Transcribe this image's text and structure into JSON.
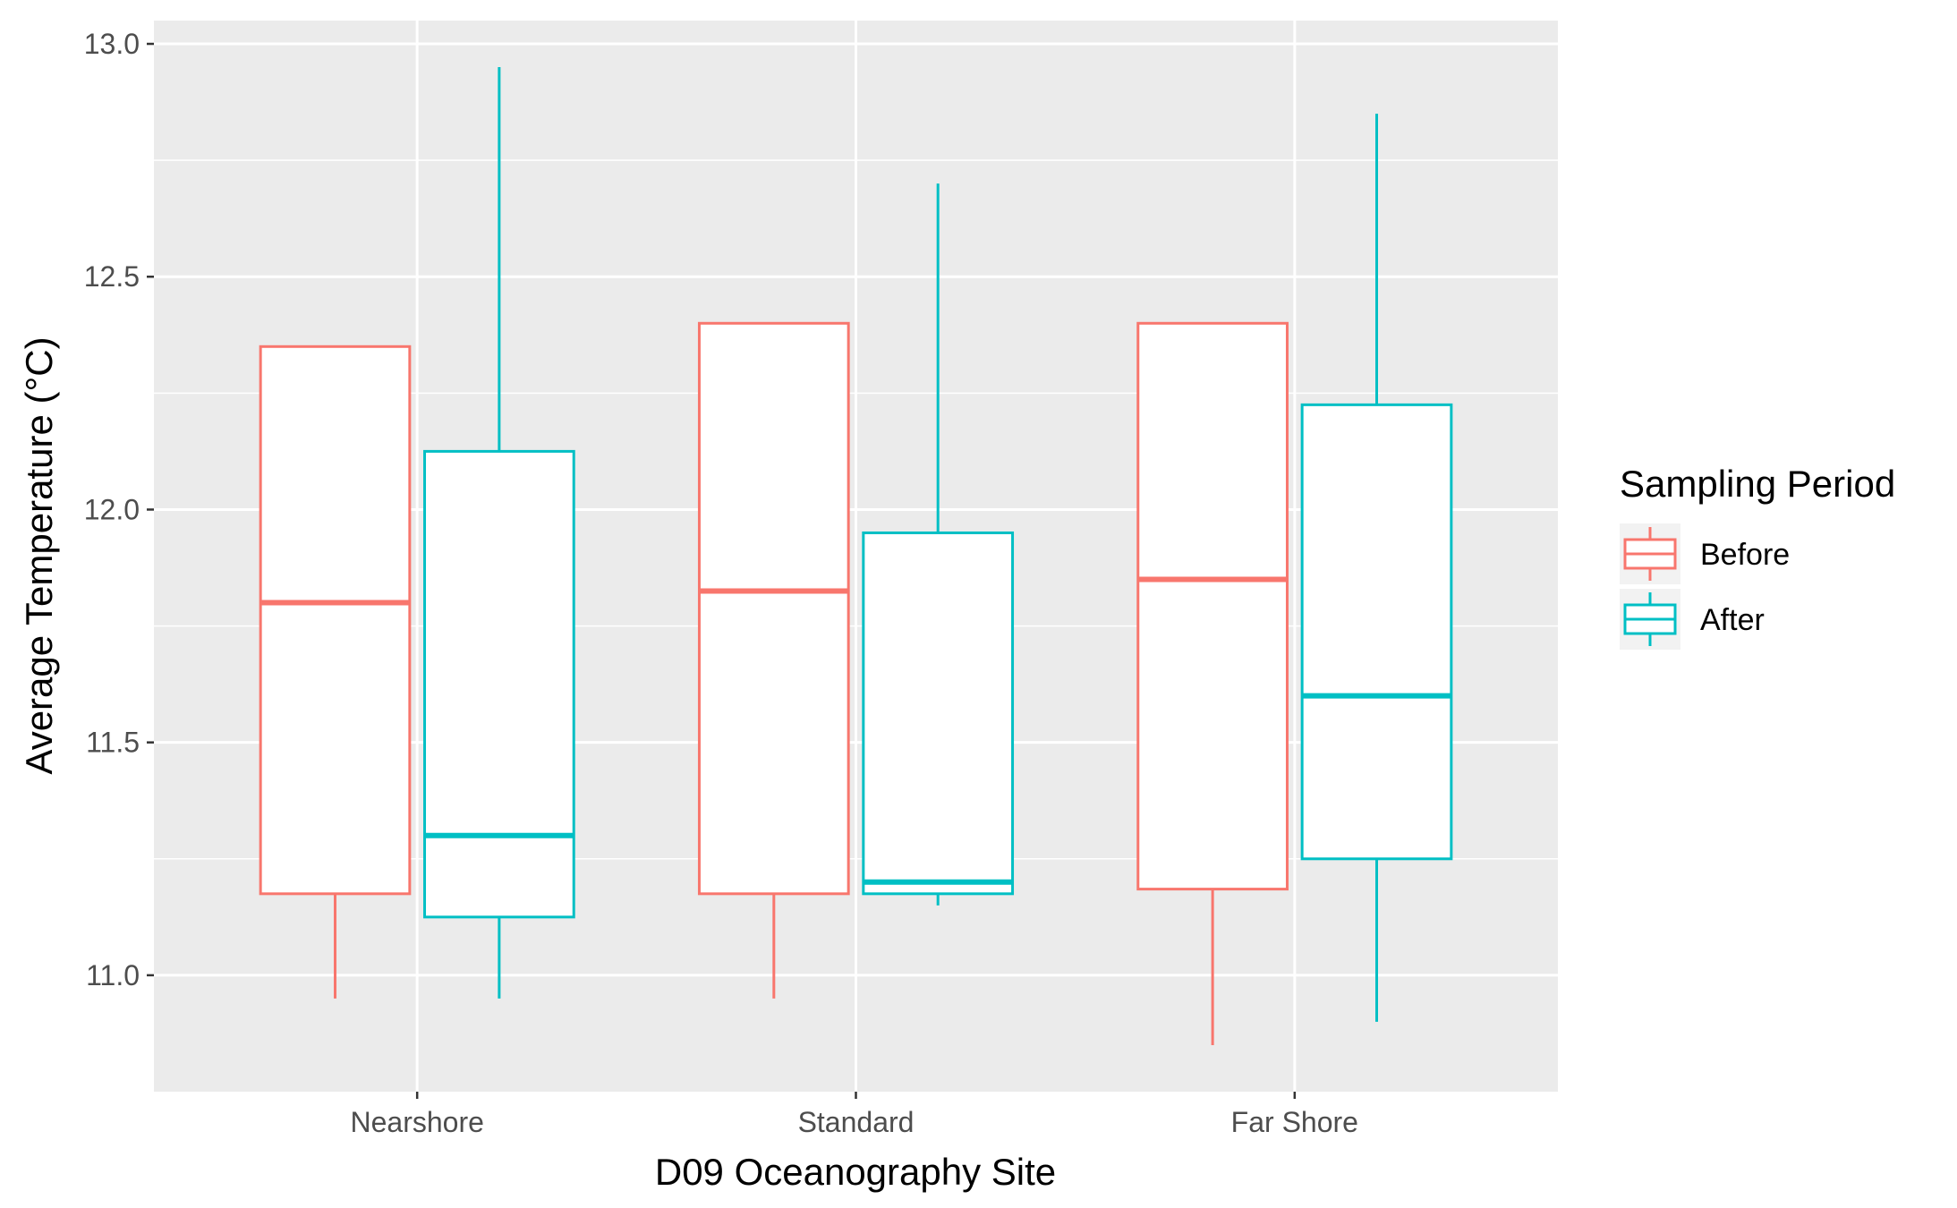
{
  "chart_data": {
    "type": "boxplot",
    "title": "",
    "xlabel": "D09 Oceanography Site",
    "ylabel": "Average Temperature (°C)",
    "categories": [
      "Nearshore",
      "Standard",
      "Far Shore"
    ],
    "ylim": [
      10.75,
      13.05
    ],
    "yticks": [
      "11.0",
      "11.5",
      "12.0",
      "12.5",
      "13.0"
    ],
    "grid": true,
    "legend": {
      "title": "Sampling Period",
      "position": "right"
    },
    "series": [
      {
        "name": "Before",
        "color": "#F8766D",
        "boxes": [
          {
            "min": 10.95,
            "q1": 11.175,
            "median": 11.8,
            "q3": 12.35,
            "max": 12.35
          },
          {
            "min": 10.95,
            "q1": 11.175,
            "median": 11.825,
            "q3": 12.4,
            "max": 12.4
          },
          {
            "min": 10.85,
            "q1": 11.185,
            "median": 11.85,
            "q3": 12.4,
            "max": 12.4
          }
        ]
      },
      {
        "name": "After",
        "color": "#00BFC4",
        "boxes": [
          {
            "min": 10.95,
            "q1": 11.125,
            "median": 11.3,
            "q3": 12.125,
            "max": 12.95
          },
          {
            "min": 11.15,
            "q1": 11.175,
            "median": 11.2,
            "q3": 11.95,
            "max": 12.7
          },
          {
            "min": 10.9,
            "q1": 11.25,
            "median": 11.6,
            "q3": 12.225,
            "max": 12.85
          }
        ]
      }
    ],
    "colors": {
      "panel": "#EBEBEB",
      "grid": "#FFFFFF",
      "axis_text": "#4D4D4D"
    }
  }
}
